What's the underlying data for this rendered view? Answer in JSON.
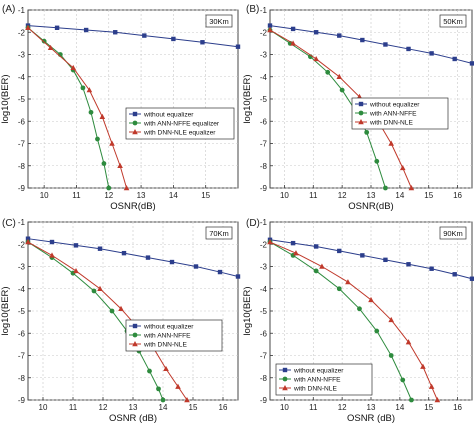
{
  "chart_data": [
    {
      "type": "line",
      "panel_label": "(A)",
      "distance_label": "30Km",
      "xlabel": "OSNR(dB)",
      "ylabel": "log10(BER)",
      "xlim": [
        9.5,
        16
      ],
      "ylim": [
        -9,
        -1
      ],
      "xticks": [
        10,
        11,
        12,
        13,
        14,
        15
      ],
      "yticks": [
        -1,
        -2,
        -3,
        -4,
        -5,
        -6,
        -7,
        -8,
        -9
      ],
      "legend_position": "right-middle",
      "series": [
        {
          "name": "without equalizer",
          "color": "#2c3e8c",
          "marker": "square",
          "x": [
            9.5,
            10.4,
            11.3,
            12.2,
            13.1,
            14.0,
            14.9,
            16.0
          ],
          "y": [
            -1.7,
            -1.8,
            -1.9,
            -2.0,
            -2.15,
            -2.3,
            -2.45,
            -2.65
          ]
        },
        {
          "name": "with ANN-NFFE equalizer",
          "color": "#2e8b3e",
          "marker": "circle",
          "x": [
            9.5,
            10.0,
            10.5,
            10.9,
            11.2,
            11.45,
            11.65,
            11.85,
            12.0
          ],
          "y": [
            -1.8,
            -2.4,
            -3.0,
            -3.7,
            -4.5,
            -5.6,
            -6.8,
            -7.9,
            -9.0
          ]
        },
        {
          "name": "with DNN-NLE equalizer",
          "color": "#c0392b",
          "marker": "triangle",
          "x": [
            9.5,
            10.2,
            10.9,
            11.4,
            11.8,
            12.1,
            12.35,
            12.55
          ],
          "y": [
            -1.8,
            -2.7,
            -3.6,
            -4.6,
            -5.8,
            -7.0,
            -8.0,
            -9.0
          ]
        }
      ]
    },
    {
      "type": "line",
      "panel_label": "(B)",
      "distance_label": "50Km",
      "xlabel": "OSNR(dB)",
      "ylabel": "log10(BER)",
      "xlim": [
        9.5,
        16.5
      ],
      "ylim": [
        -9,
        -1
      ],
      "xticks": [
        10,
        11,
        12,
        13,
        14,
        15,
        16
      ],
      "yticks": [
        -1,
        -2,
        -3,
        -4,
        -5,
        -6,
        -7,
        -8,
        -9
      ],
      "legend_position": "right-middle",
      "series": [
        {
          "name": "without equalizer",
          "color": "#2c3e8c",
          "marker": "square",
          "x": [
            9.5,
            10.3,
            11.1,
            11.9,
            12.7,
            13.5,
            14.3,
            15.1,
            15.9,
            16.5
          ],
          "y": [
            -1.7,
            -1.85,
            -2.0,
            -2.15,
            -2.35,
            -2.55,
            -2.75,
            -2.95,
            -3.2,
            -3.4
          ]
        },
        {
          "name": "with ANN-NFFE",
          "color": "#2e8b3e",
          "marker": "circle",
          "x": [
            9.5,
            10.2,
            10.9,
            11.5,
            12.0,
            12.45,
            12.85,
            13.2,
            13.5
          ],
          "y": [
            -1.9,
            -2.5,
            -3.1,
            -3.8,
            -4.6,
            -5.5,
            -6.5,
            -7.8,
            -9.0
          ]
        },
        {
          "name": "with DNN-NLE",
          "color": "#c0392b",
          "marker": "triangle",
          "x": [
            9.5,
            10.3,
            11.1,
            11.9,
            12.6,
            13.2,
            13.7,
            14.1,
            14.4
          ],
          "y": [
            -1.9,
            -2.5,
            -3.2,
            -4.0,
            -4.9,
            -5.9,
            -7.0,
            -8.1,
            -9.0
          ]
        }
      ]
    },
    {
      "type": "line",
      "panel_label": "(C)",
      "distance_label": "70Km",
      "xlabel": "OSNR (dB)",
      "ylabel": "log10(BER)",
      "xlim": [
        9.5,
        16.5
      ],
      "ylim": [
        -9,
        -1
      ],
      "xticks": [
        10,
        11,
        12,
        13,
        14,
        15,
        16
      ],
      "yticks": [
        -1,
        -2,
        -3,
        -4,
        -5,
        -6,
        -7,
        -8,
        -9
      ],
      "legend_position": "right-middle",
      "series": [
        {
          "name": "without equalizer",
          "color": "#2c3e8c",
          "marker": "square",
          "x": [
            9.5,
            10.3,
            11.1,
            11.9,
            12.7,
            13.5,
            14.3,
            15.1,
            15.9,
            16.5
          ],
          "y": [
            -1.75,
            -1.9,
            -2.05,
            -2.2,
            -2.4,
            -2.6,
            -2.8,
            -3.0,
            -3.25,
            -3.45
          ]
        },
        {
          "name": "with ANN-NFFE",
          "color": "#2e8b3e",
          "marker": "circle",
          "x": [
            9.5,
            10.3,
            11.0,
            11.7,
            12.3,
            12.8,
            13.2,
            13.55,
            13.85,
            14.0
          ],
          "y": [
            -1.9,
            -2.6,
            -3.3,
            -4.1,
            -5.0,
            -5.9,
            -6.8,
            -7.7,
            -8.5,
            -9.0
          ]
        },
        {
          "name": "with DNN-NLE",
          "color": "#c0392b",
          "marker": "triangle",
          "x": [
            9.5,
            10.3,
            11.1,
            11.9,
            12.6,
            13.2,
            13.7,
            14.1,
            14.5,
            14.8
          ],
          "y": [
            -1.9,
            -2.5,
            -3.2,
            -4.0,
            -4.9,
            -5.8,
            -6.7,
            -7.6,
            -8.4,
            -9.0
          ]
        }
      ]
    },
    {
      "type": "line",
      "panel_label": "(D)",
      "distance_label": "90Km",
      "xlabel": "OSNR (dB)",
      "ylabel": "log10(BER)",
      "xlim": [
        9.5,
        16.5
      ],
      "ylim": [
        -9,
        -1
      ],
      "xticks": [
        10,
        11,
        12,
        13,
        14,
        15,
        16
      ],
      "yticks": [
        -1,
        -2,
        -3,
        -4,
        -5,
        -6,
        -7,
        -8,
        -9
      ],
      "legend_position": "left-bottom",
      "series": [
        {
          "name": "without equalizer",
          "color": "#2c3e8c",
          "marker": "square",
          "x": [
            9.5,
            10.3,
            11.1,
            11.9,
            12.7,
            13.5,
            14.3,
            15.1,
            15.9,
            16.5
          ],
          "y": [
            -1.8,
            -1.95,
            -2.1,
            -2.3,
            -2.5,
            -2.7,
            -2.9,
            -3.1,
            -3.35,
            -3.55
          ]
        },
        {
          "name": "with ANN-NFFE",
          "color": "#2e8b3e",
          "marker": "circle",
          "x": [
            9.5,
            10.3,
            11.1,
            11.9,
            12.6,
            13.2,
            13.7,
            14.1,
            14.4
          ],
          "y": [
            -1.9,
            -2.5,
            -3.2,
            -4.0,
            -4.9,
            -5.9,
            -7.0,
            -8.1,
            -9.0
          ]
        },
        {
          "name": "with DNN-NLE",
          "color": "#c0392b",
          "marker": "triangle",
          "x": [
            9.5,
            10.4,
            11.3,
            12.2,
            13.0,
            13.7,
            14.3,
            14.8,
            15.1,
            15.3
          ],
          "y": [
            -1.9,
            -2.4,
            -3.0,
            -3.7,
            -4.5,
            -5.4,
            -6.4,
            -7.5,
            -8.4,
            -9.0
          ]
        }
      ]
    }
  ]
}
